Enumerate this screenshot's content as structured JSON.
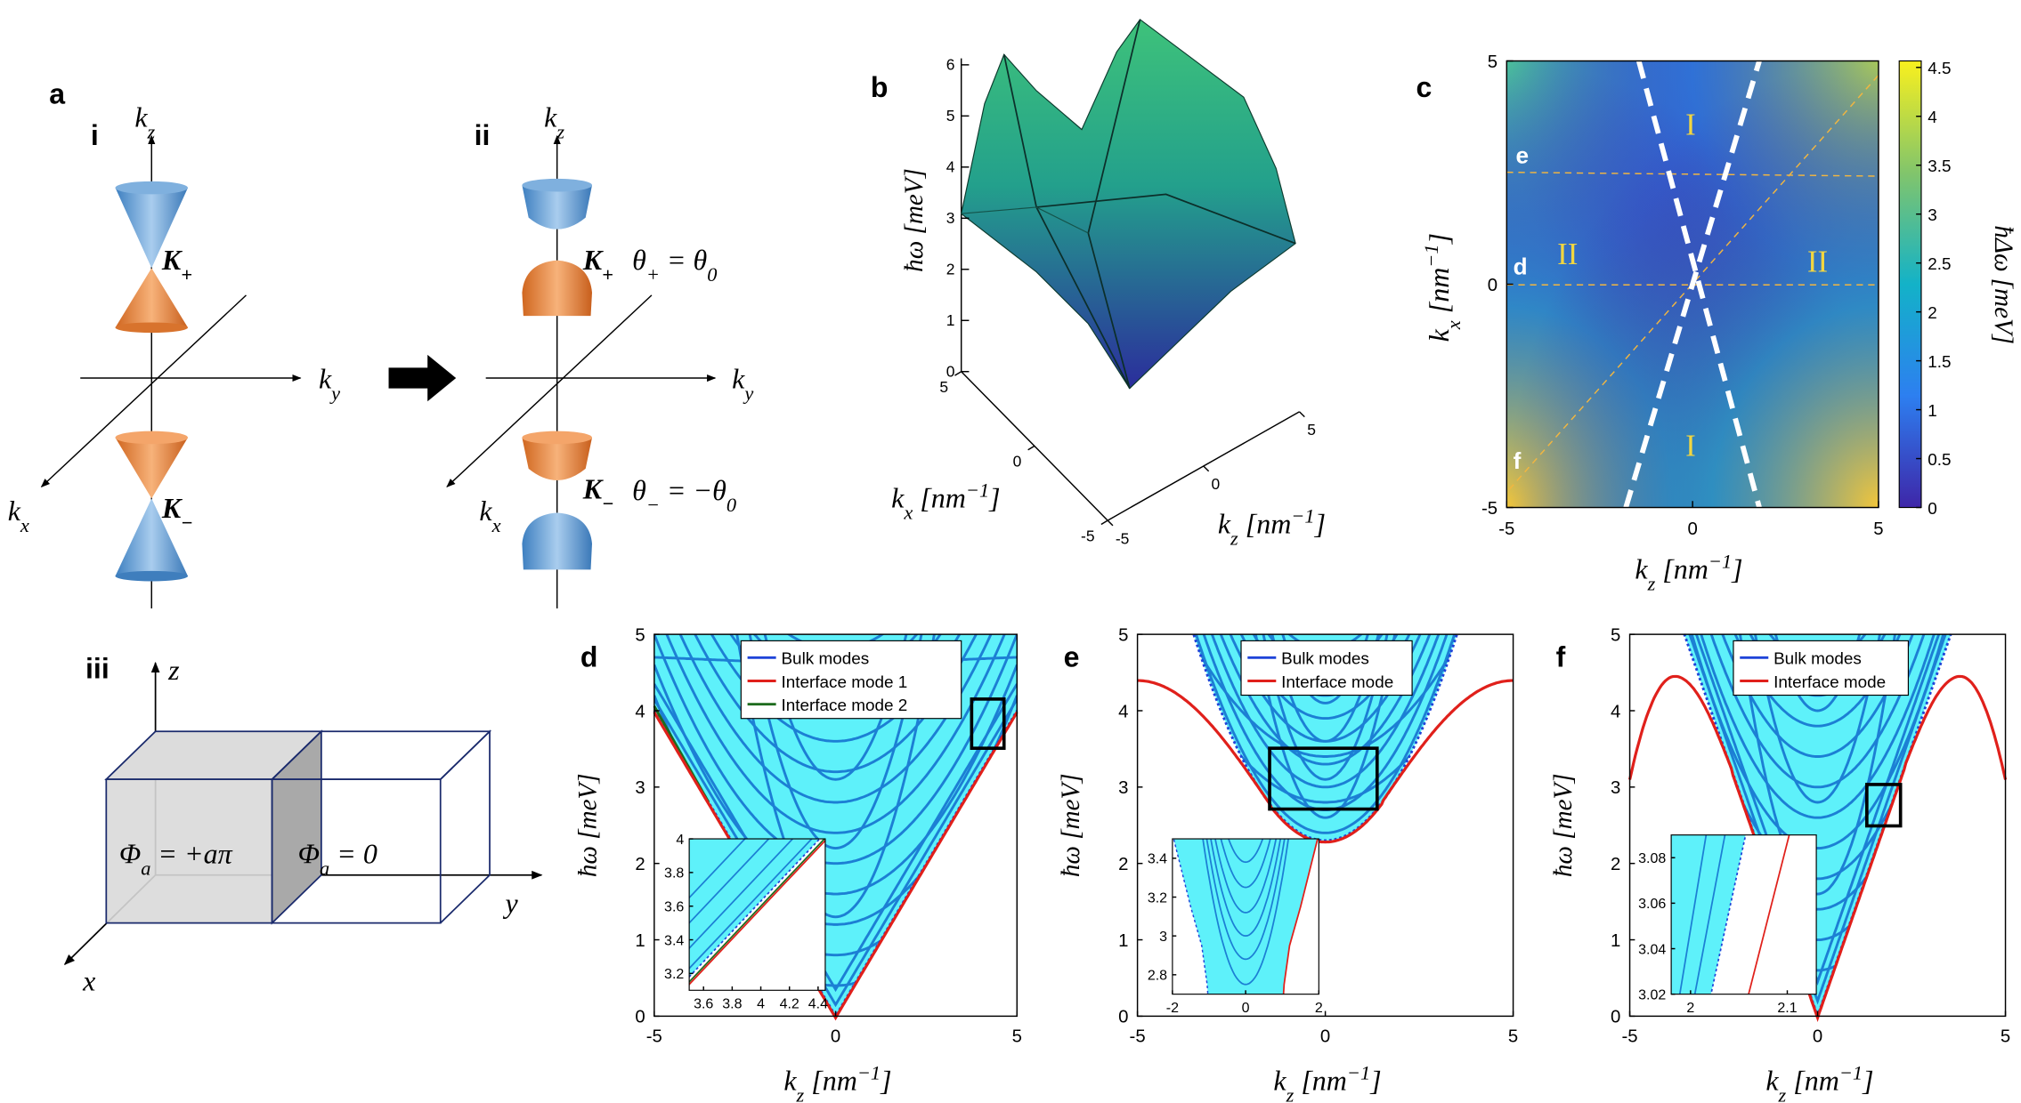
{
  "panels": {
    "a": {
      "label": "a",
      "sub_i": "i",
      "sub_ii": "ii",
      "sub_iii": "iii",
      "i_kz": [
        {
          "t": "k"
        },
        {
          "t": "z",
          "s": "sub"
        }
      ],
      "i_ky": [
        {
          "t": "k"
        },
        {
          "t": "y",
          "s": "sub"
        }
      ],
      "i_kx": [
        {
          "t": "k"
        },
        {
          "t": "x",
          "s": "sub"
        }
      ],
      "i_kplus": [
        {
          "t": "K"
        },
        {
          "t": "+",
          "s": "sub"
        }
      ],
      "i_kminus": [
        {
          "t": "K"
        },
        {
          "t": "−",
          "s": "sub"
        }
      ],
      "ii_kz": [
        {
          "t": "k"
        },
        {
          "t": "z",
          "s": "sub"
        }
      ],
      "ii_ky": [
        {
          "t": "k"
        },
        {
          "t": "y",
          "s": "sub"
        }
      ],
      "ii_kx": [
        {
          "t": "k"
        },
        {
          "t": "x",
          "s": "sub"
        }
      ],
      "ii_kplus": [
        {
          "t": "K"
        },
        {
          "t": "+",
          "s": "sub"
        }
      ],
      "ii_kminus": [
        {
          "t": "K"
        },
        {
          "t": "−",
          "s": "sub"
        }
      ],
      "theta_plus": [
        {
          "t": "θ"
        },
        {
          "t": "+",
          "s": "sub"
        },
        {
          "t": " = θ"
        },
        {
          "t": "0",
          "s": "sub"
        }
      ],
      "theta_minus": [
        {
          "t": "θ"
        },
        {
          "t": "−",
          "s": "sub"
        },
        {
          "t": " = −θ"
        },
        {
          "t": "0",
          "s": "sub"
        }
      ],
      "iii_z": "z",
      "iii_y": "y",
      "iii_x": "x",
      "phi_left": [
        {
          "t": "Φ"
        },
        {
          "t": "a",
          "s": "sub"
        },
        {
          "t": " = +aπ"
        }
      ],
      "phi_right": [
        {
          "t": "Φ"
        },
        {
          "t": "a",
          "s": "sub"
        },
        {
          "t": " = 0"
        }
      ]
    },
    "b": {
      "label": "b",
      "zlabel": [
        {
          "t": "ħω [meV]"
        }
      ],
      "kxlabel": [
        {
          "t": "k"
        },
        {
          "t": "x",
          "s": "sub"
        },
        {
          "t": " [nm"
        },
        {
          "t": "−1",
          "s": "sup"
        },
        {
          "t": "]"
        }
      ],
      "kzlabel": [
        {
          "t": "k"
        },
        {
          "t": "z",
          "s": "sub"
        },
        {
          "t": " [nm"
        },
        {
          "t": "−1",
          "s": "sup"
        },
        {
          "t": "]"
        }
      ],
      "zlim": [
        0,
        6
      ],
      "zticks": [
        0,
        1,
        2,
        3,
        4,
        5,
        6
      ],
      "kxlim": [
        5,
        -5
      ],
      "kxticks": [
        5,
        0,
        -5
      ],
      "kzlim": [
        -5,
        5
      ],
      "kzticks": [
        -5,
        0,
        5
      ]
    },
    "c": {
      "label": "c",
      "xlim": [
        -5,
        5
      ],
      "ylim": [
        -5,
        5
      ],
      "xticks": [
        -5,
        0,
        5
      ],
      "yticks": [
        -5,
        0,
        5
      ],
      "xlabel": [
        {
          "t": "k"
        },
        {
          "t": "z",
          "s": "sub"
        },
        {
          "t": " [nm"
        },
        {
          "t": "−1",
          "s": "sup"
        },
        {
          "t": "]"
        }
      ],
      "ylabel": [
        {
          "t": "k"
        },
        {
          "t": "x",
          "s": "sub"
        },
        {
          "t": " [nm"
        },
        {
          "t": "−1",
          "s": "sup"
        },
        {
          "t": "]"
        }
      ],
      "clim": [
        0,
        4.5
      ],
      "cticks": [
        0,
        0.5,
        1,
        1.5,
        2,
        2.5,
        3,
        3.5,
        4,
        4.5
      ],
      "clabel": [
        {
          "t": "ħΔω [meV]"
        }
      ],
      "cuts": [
        "e",
        "d",
        "f"
      ],
      "regions": [
        "I",
        "II",
        "II",
        "I"
      ]
    },
    "d": {
      "label": "d",
      "xlim": [
        -5,
        5
      ],
      "ylim": [
        0,
        5
      ],
      "xticks": [
        -5,
        0,
        5
      ],
      "yticks": [
        0,
        1,
        2,
        3,
        4,
        5
      ],
      "xlabel": [
        {
          "t": "k"
        },
        {
          "t": "z",
          "s": "sub"
        },
        {
          "t": " [nm"
        },
        {
          "t": "−1",
          "s": "sup"
        },
        {
          "t": "]"
        }
      ],
      "ylabel": [
        {
          "t": "ħω [meV]"
        }
      ],
      "series": [
        {
          "name": "Bulk modes",
          "color": "#1f44d8"
        },
        {
          "name": "Interface mode 1",
          "color": "#e0201b"
        },
        {
          "name": "Interface mode 2",
          "color": "#1d6b1d"
        }
      ],
      "inset": {
        "xlim": [
          3.5,
          4.45
        ],
        "ylim": [
          3.1,
          4
        ],
        "xticks": [
          3.6,
          3.8,
          4,
          4.2,
          4.4
        ],
        "yticks": [
          3.2,
          3.4,
          3.6,
          3.8,
          4
        ]
      }
    },
    "e": {
      "label": "e",
      "xlim": [
        -5,
        5
      ],
      "ylim": [
        0,
        5
      ],
      "xticks": [
        -5,
        0,
        5
      ],
      "yticks": [
        0,
        1,
        2,
        3,
        4,
        5
      ],
      "xlabel": [
        {
          "t": "k"
        },
        {
          "t": "z",
          "s": "sub"
        },
        {
          "t": " [nm"
        },
        {
          "t": "−1",
          "s": "sup"
        },
        {
          "t": "]"
        }
      ],
      "ylabel": [
        {
          "t": "ħω [meV]"
        }
      ],
      "series": [
        {
          "name": "Bulk modes",
          "color": "#1f44d8"
        },
        {
          "name": "Interface mode",
          "color": "#e0201b"
        }
      ],
      "inset": {
        "xlim": [
          -2,
          2
        ],
        "ylim": [
          2.7,
          3.5
        ],
        "xticks": [
          -2,
          0,
          2
        ],
        "yticks": [
          2.8,
          3,
          3.2,
          3.4
        ]
      }
    },
    "f": {
      "label": "f",
      "xlim": [
        -5,
        5
      ],
      "ylim": [
        0,
        5
      ],
      "xticks": [
        -5,
        0,
        5
      ],
      "yticks": [
        0,
        1,
        2,
        3,
        4,
        5
      ],
      "xlabel": [
        {
          "t": "k"
        },
        {
          "t": "z",
          "s": "sub"
        },
        {
          "t": " [nm"
        },
        {
          "t": "−1",
          "s": "sup"
        },
        {
          "t": "]"
        }
      ],
      "ylabel": [
        {
          "t": "ħω [meV]"
        }
      ],
      "series": [
        {
          "name": "Bulk modes",
          "color": "#1f44d8"
        },
        {
          "name": "Interface mode",
          "color": "#e0201b"
        }
      ],
      "inset": {
        "xlim": [
          1.98,
          2.13
        ],
        "ylim": [
          3.02,
          3.09
        ],
        "xticks": [
          2,
          2.1
        ],
        "yticks": [
          3.02,
          3.04,
          3.06,
          3.08
        ]
      }
    }
  }
}
